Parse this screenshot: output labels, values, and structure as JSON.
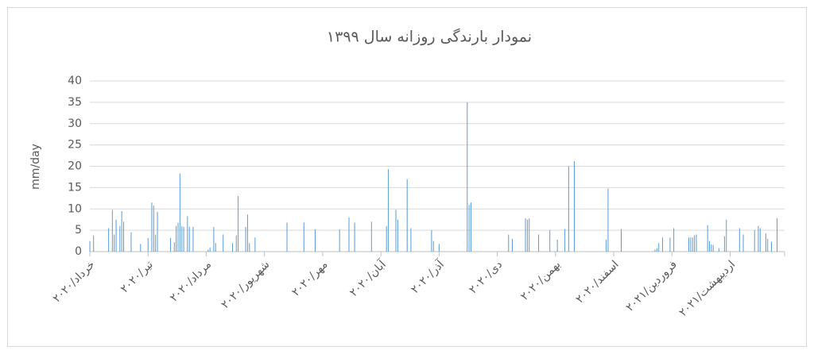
{
  "chart_data": {
    "type": "bar",
    "title": "نمودار بارندگی روزانه سال ۱۳۹۹",
    "y_label": "mm/day",
    "color": "#5b9bd5",
    "grid": true,
    "x": [
      0,
      2,
      10,
      12,
      13,
      14,
      16,
      17,
      18,
      22,
      27,
      31,
      33,
      34,
      35,
      36,
      43,
      45,
      46,
      47,
      48,
      49,
      50,
      52,
      53,
      55,
      63,
      64,
      66,
      67,
      71,
      76,
      78,
      79,
      83,
      84,
      85,
      88,
      105,
      114,
      120,
      133,
      138,
      141,
      150,
      158,
      159,
      163,
      164,
      169,
      171,
      182,
      183,
      186,
      201,
      202,
      203,
      223,
      225,
      232,
      233,
      234,
      239,
      245,
      249,
      253,
      255,
      258,
      275,
      276,
      283,
      301,
      302,
      303,
      305,
      309,
      311,
      319,
      320,
      321,
      322,
      323,
      329,
      330,
      331,
      332,
      335,
      338,
      339,
      346,
      348,
      354,
      356,
      357,
      360,
      361,
      363,
      366
    ],
    "values": [
      2.5,
      3.8,
      5.5,
      9.8,
      4,
      7.5,
      6,
      9.5,
      7,
      4.5,
      1.8,
      3.2,
      11.5,
      10.8,
      4,
      9.3,
      3.2,
      2.2,
      6,
      6.8,
      18.3,
      6,
      5.8,
      8.3,
      5.8,
      5.8,
      0.5,
      1,
      5.8,
      2,
      4,
      2,
      3.8,
      13,
      5.8,
      8.7,
      2,
      3.3,
      6.8,
      6.8,
      5.2,
      5.2,
      8,
      6.8,
      7,
      6,
      19.3,
      9.8,
      7.5,
      17,
      5.5,
      5,
      2.5,
      1.8,
      35,
      11,
      11.5,
      4,
      3,
      7.8,
      7.5,
      7.8,
      4,
      5,
      2.8,
      5.3,
      20,
      21.2,
      2.8,
      14.8,
      5.3,
      0.5,
      0.8,
      2,
      3.3,
      3.3,
      5.5,
      3.3,
      3.3,
      3.3,
      3.8,
      4,
      6.2,
      2.5,
      1.7,
      1.5,
      0.8,
      3.6,
      7.5,
      5.5,
      4,
      5,
      6,
      5.5,
      4.3,
      3,
      2.3,
      7.8
    ],
    "xlim": [
      0,
      370
    ],
    "xticks": [
      {
        "value": 0,
        "label": "خرداد/۲۰۲۰"
      },
      {
        "value": 31,
        "label": "تیر/۲۰۲۰"
      },
      {
        "value": 62,
        "label": "مرداد/۲۰۲۰"
      },
      {
        "value": 93,
        "label": "شهریور/۲۰۲۰"
      },
      {
        "value": 124,
        "label": "مهر/۲۰۲۰"
      },
      {
        "value": 155,
        "label": "آبان/۲۰۲۰"
      },
      {
        "value": 186,
        "label": "آذر/۲۰۲۰"
      },
      {
        "value": 217,
        "label": "دی/۲۰۲۰"
      },
      {
        "value": 248,
        "label": "بهمن/۲۰۲۰"
      },
      {
        "value": 279,
        "label": "اسفند/۲۰۲۰"
      },
      {
        "value": 310,
        "label": "فروردین/۲۰۲۱"
      },
      {
        "value": 341,
        "label": "اردیبهشت/۲۰۲۱"
      }
    ],
    "ylim": [
      0,
      40
    ],
    "yticks": [
      0,
      5,
      10,
      15,
      20,
      25,
      30,
      35,
      40
    ]
  }
}
